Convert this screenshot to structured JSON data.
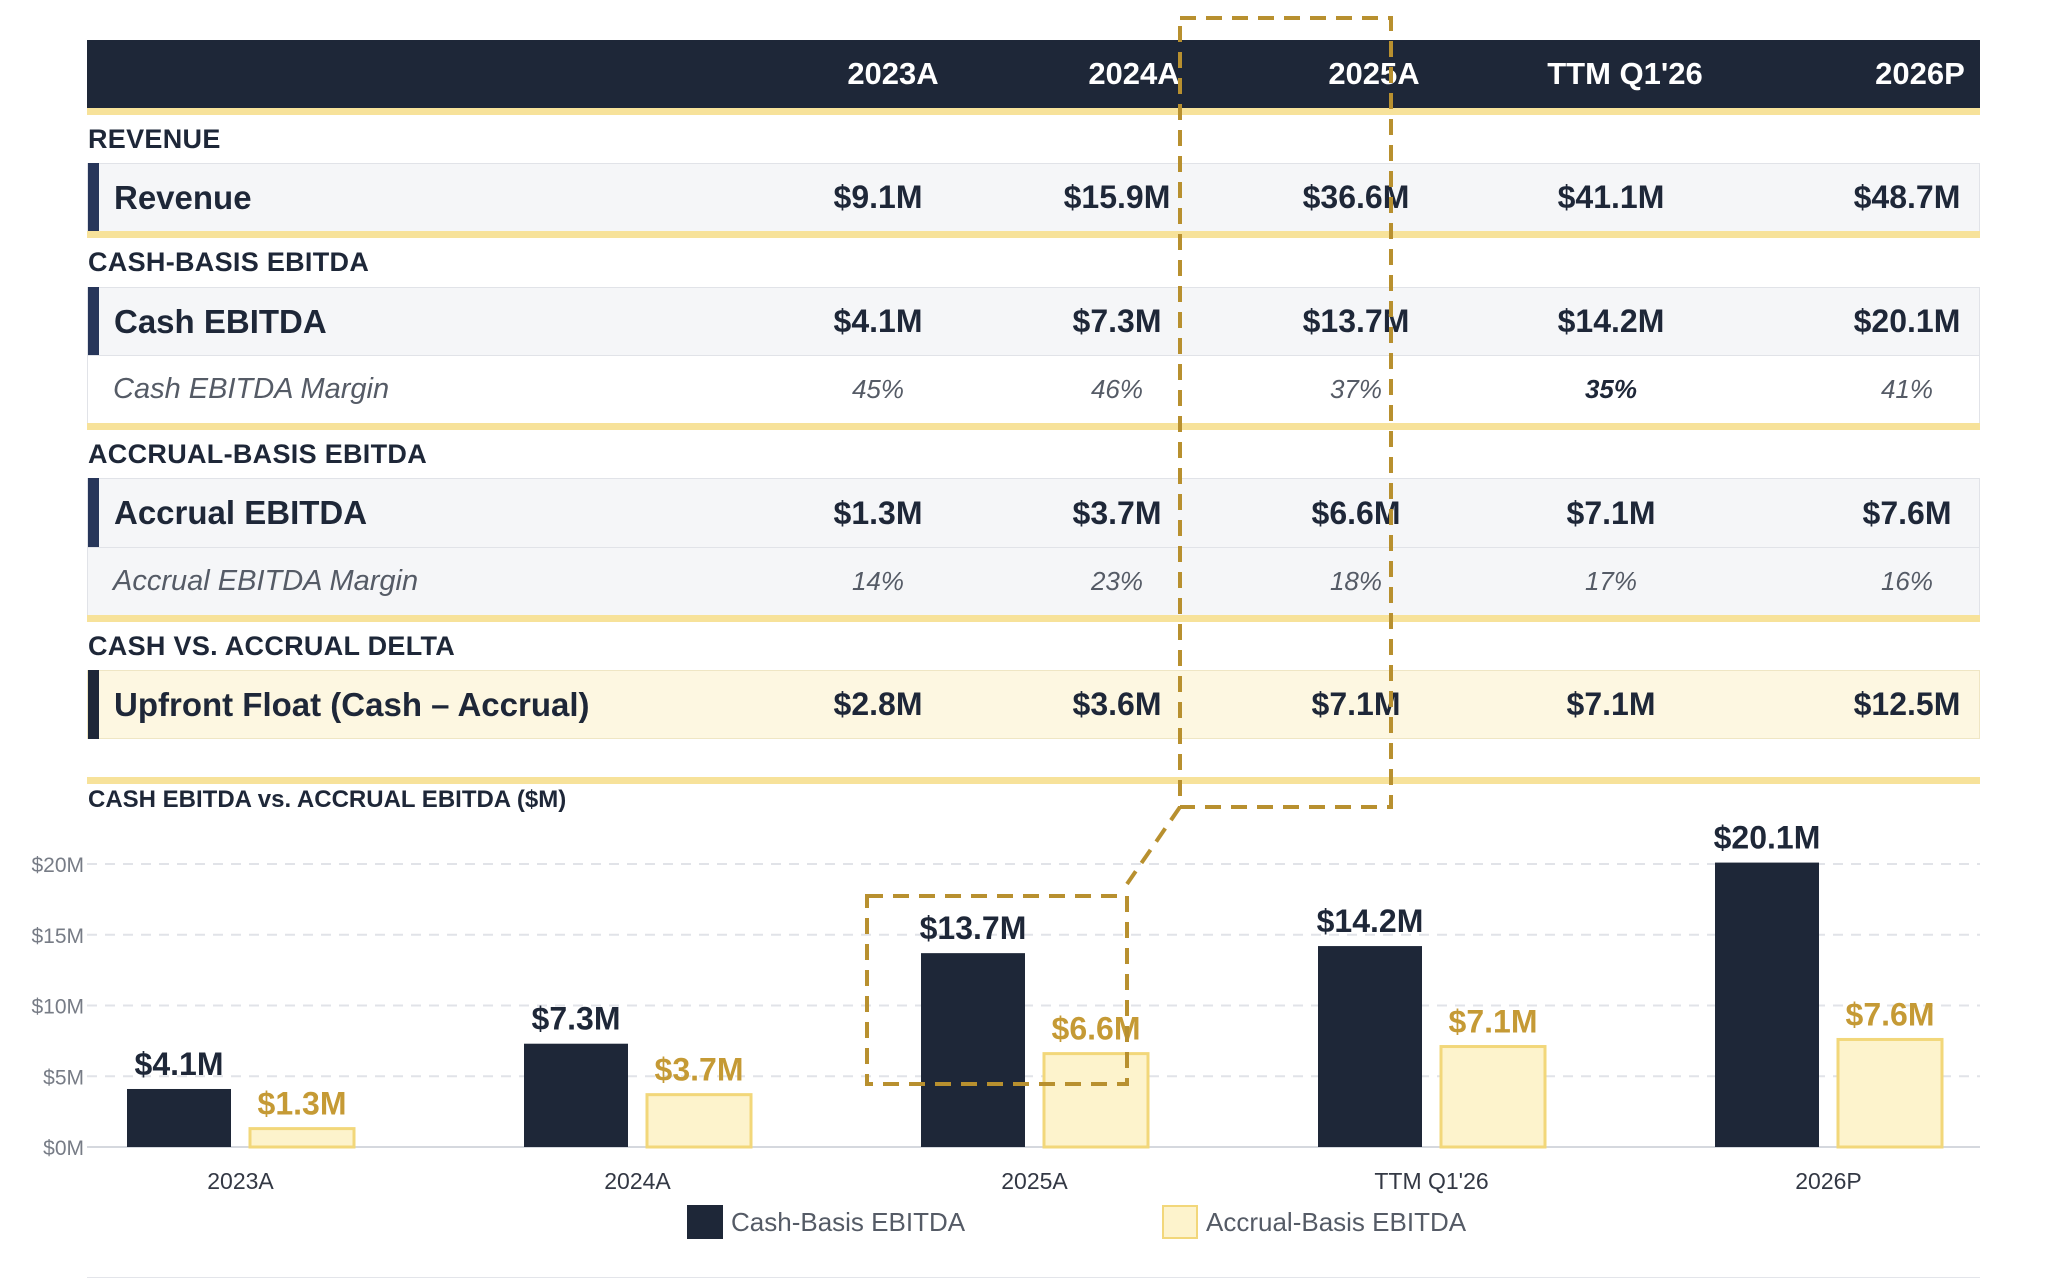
{
  "colors": {
    "navy": "#1e2738",
    "accent_bar": "#27365a",
    "gold": "#f7e29a",
    "cream": "#fdf3cc",
    "highlight": "#b8902f",
    "gold_text": "#c59a35"
  },
  "table": {
    "columns": [
      "2023A",
      "2024A",
      "2025A",
      "TTM Q1'26",
      "2026P"
    ],
    "sections": [
      {
        "title": "REVENUE",
        "rows": [
          {
            "label": "Revenue",
            "style": "primary",
            "values": [
              "$9.1M",
              "$15.9M",
              "$36.6M",
              "$41.1M",
              "$48.7M"
            ]
          }
        ]
      },
      {
        "title": "CASH-BASIS EBITDA",
        "rows": [
          {
            "label": "Cash EBITDA",
            "style": "primary",
            "values": [
              "$4.1M",
              "$7.3M",
              "$13.7M",
              "$14.2M",
              "$20.1M"
            ]
          },
          {
            "label": "Cash EBITDA Margin",
            "style": "margin",
            "values": [
              "45%",
              "46%",
              "37%",
              "35%",
              "41%"
            ]
          }
        ]
      },
      {
        "title": "ACCRUAL-BASIS EBITDA",
        "rows": [
          {
            "label": "Accrual EBITDA",
            "style": "primary",
            "values": [
              "$1.3M",
              "$3.7M",
              "$6.6M",
              "$7.1M",
              "$7.6M"
            ]
          },
          {
            "label": "Accrual EBITDA Margin",
            "style": "margin",
            "values": [
              "14%",
              "23%",
              "18%",
              "17%",
              "16%"
            ]
          }
        ]
      },
      {
        "title": "CASH VS. ACCRUAL DELTA",
        "rows": [
          {
            "label": "Upfront Float (Cash – Accrual)",
            "style": "delta",
            "values": [
              "$2.8M",
              "$3.6M",
              "$7.1M",
              "$7.1M",
              "$12.5M"
            ]
          }
        ]
      }
    ]
  },
  "chart_data": {
    "type": "bar",
    "title": "CASH EBITDA vs. ACCRUAL EBITDA ($M)",
    "categories": [
      "2023A",
      "2024A",
      "2025A",
      "TTM Q1'26",
      "2026P"
    ],
    "series": [
      {
        "name": "Cash-Basis EBITDA",
        "values": [
          4.1,
          7.3,
          13.7,
          14.2,
          20.1
        ],
        "labels": [
          "$4.1M",
          "$7.3M",
          "$13.7M",
          "$14.2M",
          "$20.1M"
        ],
        "color": "#1e2738"
      },
      {
        "name": "Accrual-Basis EBITDA",
        "values": [
          1.3,
          3.7,
          6.6,
          7.1,
          7.6
        ],
        "labels": [
          "$1.3M",
          "$3.7M",
          "$6.6M",
          "$7.1M",
          "$7.6M"
        ],
        "color": "#fdf3cc"
      }
    ],
    "y_ticks": [
      0,
      5,
      10,
      15,
      20
    ],
    "y_tick_labels": [
      "$0M",
      "$5M",
      "$10M",
      "$15M",
      "$20M"
    ],
    "ylim": [
      0,
      20
    ],
    "grid": true,
    "legend_position": "bottom-center",
    "highlighted_category": "2025A"
  }
}
